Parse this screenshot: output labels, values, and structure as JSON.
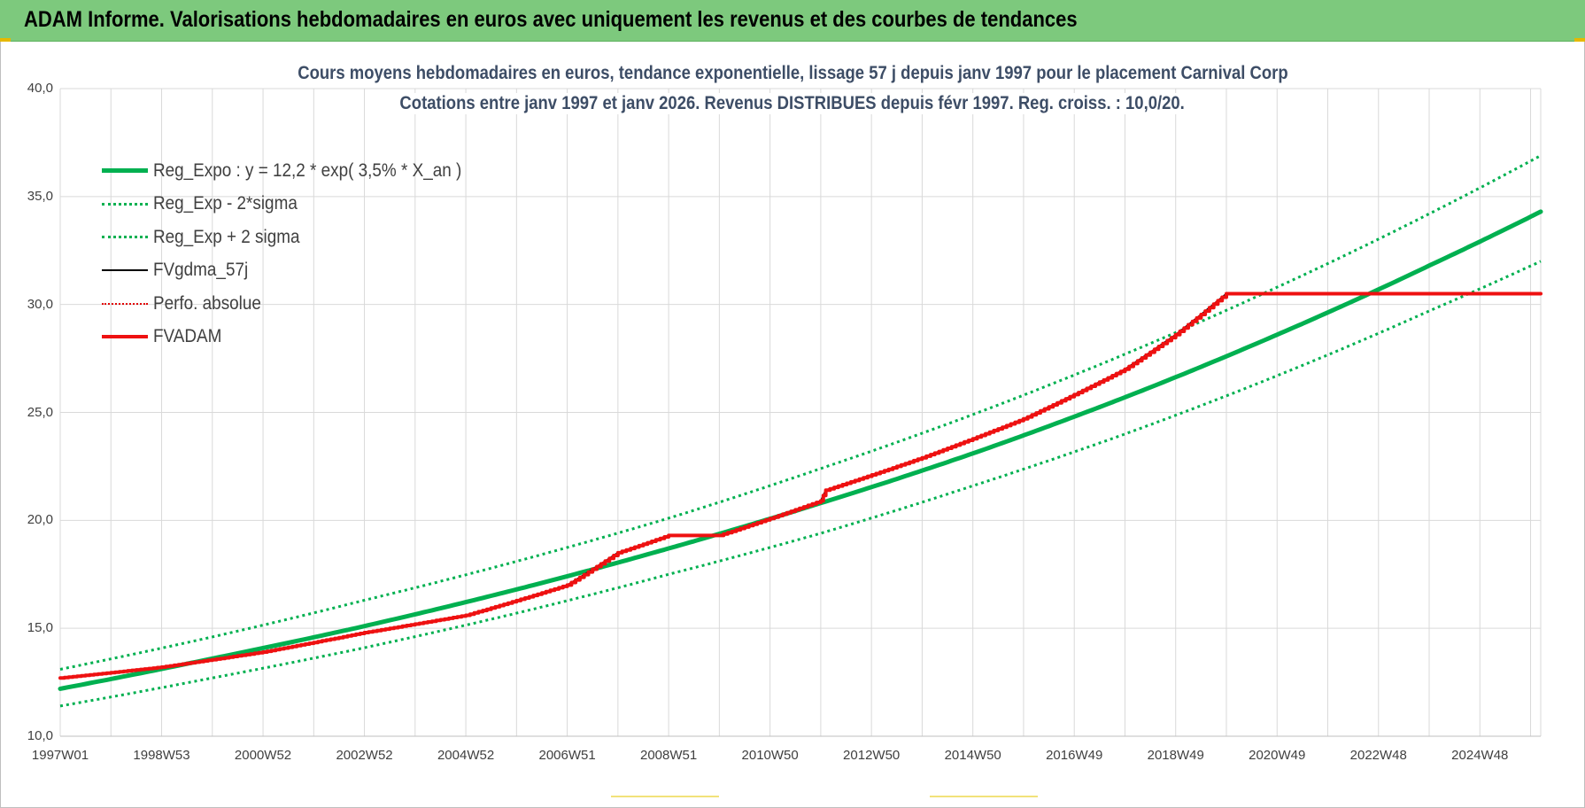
{
  "banner": {
    "title": "ADAM Informe. Valorisations hebdomadaires en euros avec uniquement les revenus et des courbes de tendances"
  },
  "chart_data": {
    "type": "line",
    "title_line1": "Cours moyens hebdomadaires en euros, tendance exponentielle, lissage 57 j depuis janv 1997  pour le placement Carnival Corp",
    "title_line2": "Cotations entre janv 1997 et janv 2026. Revenus DISTRIBUES depuis févr 1997. Reg. croiss. : 10,0/20.",
    "xlim": [
      1997.0,
      2026.2
    ],
    "ylim": [
      10,
      40
    ],
    "yticks": [
      {
        "value": 10,
        "label": "10,0"
      },
      {
        "value": 15,
        "label": "15,0"
      },
      {
        "value": 20,
        "label": "20,0"
      },
      {
        "value": 25,
        "label": "25,0"
      },
      {
        "value": 30,
        "label": "30,0"
      },
      {
        "value": 35,
        "label": "35,0"
      },
      {
        "value": 40,
        "label": "40,0"
      }
    ],
    "xticks": [
      {
        "value": 1997.0,
        "label": "1997W01"
      },
      {
        "value": 1999.0,
        "label": "1998W53"
      },
      {
        "value": 2001.0,
        "label": "2000W52"
      },
      {
        "value": 2003.0,
        "label": "2002W52"
      },
      {
        "value": 2005.0,
        "label": "2004W52"
      },
      {
        "value": 2007.0,
        "label": "2006W51"
      },
      {
        "value": 2009.0,
        "label": "2008W51"
      },
      {
        "value": 2011.0,
        "label": "2010W50"
      },
      {
        "value": 2013.0,
        "label": "2012W50"
      },
      {
        "value": 2015.0,
        "label": "2014W50"
      },
      {
        "value": 2017.0,
        "label": "2016W49"
      },
      {
        "value": 2019.0,
        "label": "2018W49"
      },
      {
        "value": 2021.0,
        "label": "2020W49"
      },
      {
        "value": 2023.0,
        "label": "2022W48"
      },
      {
        "value": 2025.0,
        "label": "2024W48"
      }
    ],
    "legend_placement": "top-left",
    "grid": true,
    "series": [
      {
        "name": "Reg_Expo : y = 12,2 * exp( 3,5% *  X_an )",
        "style": "solid-thick",
        "color": "#00b050",
        "x": [
          1997.0,
          2000.0,
          2003.0,
          2006.0,
          2009.0,
          2012.0,
          2015.0,
          2018.0,
          2021.0,
          2024.0,
          2026.2
        ],
        "y": [
          12.2,
          13.6,
          15.1,
          16.8,
          18.7,
          20.8,
          23.1,
          25.7,
          28.6,
          31.8,
          34.3
        ]
      },
      {
        "name": "Reg_Exp - 2*sigma",
        "style": "dotted",
        "color": "#00b050",
        "x": [
          1997.0,
          2000.0,
          2003.0,
          2006.0,
          2009.0,
          2012.0,
          2015.0,
          2018.0,
          2021.0,
          2024.0,
          2026.2
        ],
        "y": [
          11.4,
          12.7,
          14.1,
          15.7,
          17.5,
          19.4,
          21.6,
          24.0,
          26.7,
          29.7,
          32.0
        ]
      },
      {
        "name": "Reg_Exp + 2 sigma",
        "style": "dotted",
        "color": "#00b050",
        "x": [
          1997.0,
          2000.0,
          2003.0,
          2006.0,
          2009.0,
          2012.0,
          2015.0,
          2018.0,
          2021.0,
          2024.0,
          2026.2
        ],
        "y": [
          13.1,
          14.6,
          16.3,
          18.1,
          20.1,
          22.4,
          24.9,
          27.7,
          30.8,
          34.2,
          36.9
        ]
      },
      {
        "name": "FVgdma_57j",
        "style": "solid-thin",
        "color": "#000000",
        "x": [
          1997.0,
          1999.0,
          2001.0,
          2003.0,
          2005.0,
          2007.0,
          2008.0,
          2009.0,
          2010.0,
          2012.0,
          2012.1,
          2014.0,
          2016.0,
          2018.0,
          2019.0,
          2020.0,
          2026.2
        ],
        "y": [
          12.7,
          13.2,
          13.9,
          14.8,
          15.6,
          17.0,
          18.5,
          19.3,
          19.3,
          20.9,
          21.4,
          22.9,
          24.7,
          27.0,
          28.6,
          30.5,
          30.5
        ]
      },
      {
        "name": "Perfo. absolue",
        "style": "dotted-thin",
        "color": "#e00000",
        "x": [
          1997.0,
          1999.0,
          2001.0,
          2003.0,
          2005.0,
          2007.0,
          2008.0,
          2009.0,
          2010.0,
          2012.0,
          2012.1,
          2014.0,
          2016.0,
          2018.0,
          2019.0,
          2020.0,
          2026.2
        ],
        "y": [
          12.7,
          13.2,
          13.9,
          14.8,
          15.6,
          17.0,
          18.5,
          19.3,
          19.3,
          20.9,
          21.4,
          22.9,
          24.7,
          27.0,
          28.6,
          30.5,
          30.5
        ]
      },
      {
        "name": "FVADAM",
        "style": "solid-step",
        "color": "#ee1111",
        "x": [
          1997.0,
          1999.0,
          2001.0,
          2003.0,
          2005.0,
          2007.0,
          2008.0,
          2009.0,
          2010.0,
          2012.0,
          2012.1,
          2014.0,
          2016.0,
          2018.0,
          2019.0,
          2020.0,
          2026.2
        ],
        "y": [
          12.7,
          13.2,
          13.9,
          14.8,
          15.6,
          17.0,
          18.5,
          19.3,
          19.3,
          20.9,
          21.4,
          22.9,
          24.7,
          27.0,
          28.6,
          30.5,
          30.5
        ]
      }
    ]
  }
}
